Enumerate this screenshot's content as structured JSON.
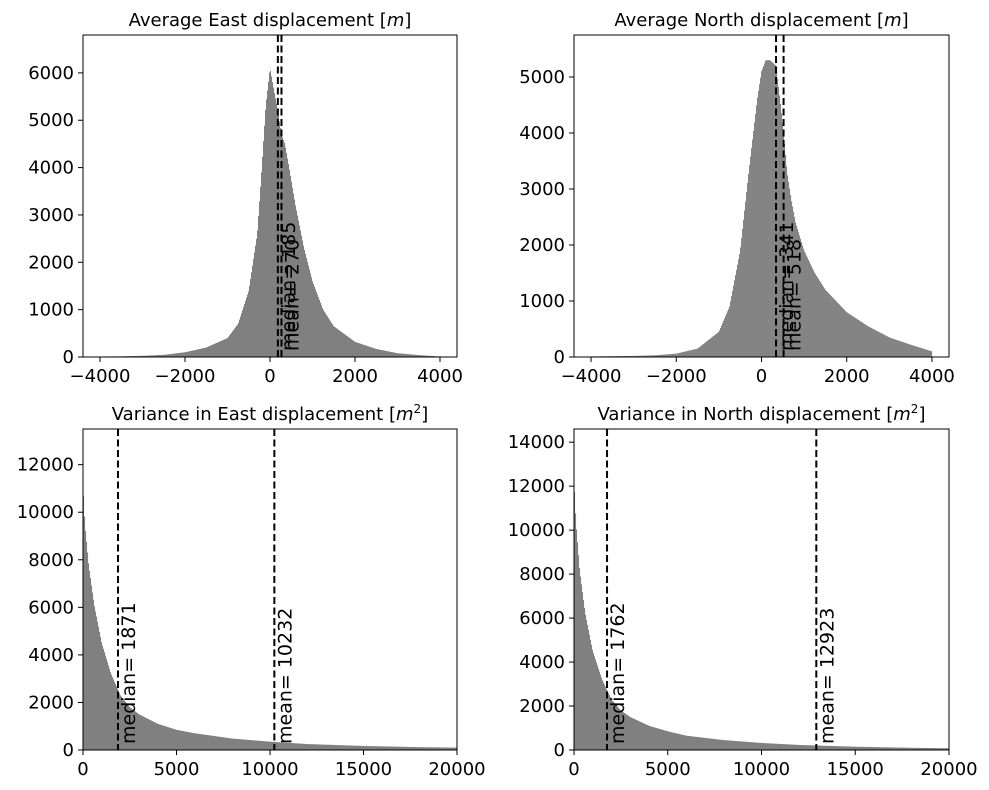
{
  "chart_data": [
    {
      "type": "histogram",
      "title": "Average East displacement [m]",
      "title_parts": [
        "Average East displacement [",
        "m",
        "]"
      ],
      "xlim": [
        -4400,
        4400
      ],
      "ylim": [
        0,
        6800
      ],
      "xticks": [
        -4000,
        -2000,
        0,
        2000,
        4000
      ],
      "xtick_labels": [
        "−4000",
        "−2000",
        "0",
        "2000",
        "4000"
      ],
      "yticks": [
        0,
        1000,
        2000,
        3000,
        4000,
        5000,
        6000
      ],
      "ytick_labels": [
        "0",
        "1000",
        "2000",
        "3000",
        "4000",
        "5000",
        "6000"
      ],
      "bar_color": "#808080",
      "bins": {
        "x": [
          -4000,
          -3500,
          -3000,
          -2500,
          -2000,
          -1500,
          -1000,
          -750,
          -500,
          -300,
          -200,
          -100,
          0,
          100,
          185,
          270,
          350,
          450,
          600,
          800,
          1000,
          1250,
          1500,
          2000,
          2500,
          3000,
          3500,
          4000
        ],
        "y": [
          10,
          15,
          25,
          45,
          100,
          200,
          400,
          700,
          1400,
          2600,
          3900,
          5300,
          6100,
          5600,
          5200,
          4700,
          4500,
          4000,
          3200,
          2300,
          1600,
          1000,
          650,
          320,
          170,
          80,
          40,
          10
        ]
      },
      "markers": [
        {
          "x": 185,
          "label": "median= 185",
          "label_y": 2500
        },
        {
          "x": 270,
          "label": "mean= 270",
          "label_y": 2500
        }
      ]
    },
    {
      "type": "histogram",
      "title": "Average North displacement [m]",
      "title_parts": [
        "Average North displacement [",
        "m",
        "]"
      ],
      "xlim": [
        -4400,
        4400
      ],
      "ylim": [
        0,
        5750
      ],
      "xticks": [
        -4000,
        -2000,
        0,
        2000,
        4000
      ],
      "xtick_labels": [
        "−4000",
        "−2000",
        "0",
        "2000",
        "4000"
      ],
      "yticks": [
        0,
        1000,
        2000,
        3000,
        4000,
        5000
      ],
      "ytick_labels": [
        "0",
        "1000",
        "2000",
        "3000",
        "4000",
        "5000"
      ],
      "bar_color": "#808080",
      "bins": {
        "x": [
          -4000,
          -3500,
          -3000,
          -2500,
          -2000,
          -1500,
          -1000,
          -750,
          -500,
          -300,
          -100,
          0,
          100,
          200,
          341,
          450,
          518,
          600,
          700,
          800,
          1000,
          1250,
          1500,
          2000,
          2500,
          3000,
          3500,
          4000
        ],
        "y": [
          10,
          15,
          20,
          30,
          60,
          150,
          450,
          900,
          1900,
          3300,
          4600,
          5100,
          5300,
          5300,
          5200,
          4500,
          4000,
          3300,
          2800,
          2400,
          1900,
          1500,
          1200,
          800,
          550,
          350,
          220,
          100
        ]
      },
      "markers": [
        {
          "x": 341,
          "label": "median= 341",
          "label_y": 2000
        },
        {
          "x": 518,
          "label": "mean= 518",
          "label_y": 2000
        }
      ]
    },
    {
      "type": "histogram",
      "title": "Variance in East displacement [m²]",
      "title_parts": [
        "Variance in East displacement [",
        "m",
        "2",
        "]"
      ],
      "xlim": [
        0,
        20000
      ],
      "ylim": [
        0,
        13500
      ],
      "xticks": [
        0,
        5000,
        10000,
        15000,
        20000
      ],
      "xtick_labels": [
        "0",
        "5000",
        "10000",
        "15000",
        "20000"
      ],
      "yticks": [
        0,
        2000,
        4000,
        6000,
        8000,
        10000,
        12000
      ],
      "ytick_labels": [
        "0",
        "2000",
        "4000",
        "6000",
        "8000",
        "10000",
        "12000"
      ],
      "bar_color": "#808080",
      "bins": {
        "x": [
          0,
          100,
          300,
          600,
          1000,
          1500,
          2000,
          2500,
          3000,
          4000,
          5000,
          6000,
          8000,
          10000,
          12000,
          15000,
          18000,
          20000
        ],
        "y": [
          11100,
          9500,
          7800,
          6100,
          4500,
          3200,
          2300,
          1800,
          1500,
          1100,
          850,
          700,
          480,
          350,
          250,
          170,
          120,
          100
        ]
      },
      "markers": [
        {
          "x": 1871,
          "label": "median= 1871",
          "label_y": 11000
        },
        {
          "x": 10232,
          "label": "mean= 10232",
          "label_y": 11000
        }
      ]
    },
    {
      "type": "histogram",
      "title": "Variance in North displacement [m²]",
      "title_parts": [
        "Variance in North displacement [",
        "m",
        "2",
        "]"
      ],
      "xlim": [
        0,
        20000
      ],
      "ylim": [
        0,
        14600
      ],
      "xticks": [
        0,
        5000,
        10000,
        15000,
        20000
      ],
      "xtick_labels": [
        "0",
        "5000",
        "10000",
        "15000",
        "20000"
      ],
      "yticks": [
        0,
        2000,
        4000,
        6000,
        8000,
        10000,
        12000,
        14000
      ],
      "ytick_labels": [
        "0",
        "2000",
        "4000",
        "6000",
        "8000",
        "10000",
        "12000",
        "14000"
      ],
      "bar_color": "#808080",
      "bins": {
        "x": [
          0,
          100,
          300,
          600,
          1000,
          1500,
          2000,
          2500,
          3000,
          4000,
          5000,
          6000,
          8000,
          10000,
          12000,
          15000,
          18000,
          20000
        ],
        "y": [
          12200,
          10400,
          8200,
          6200,
          4500,
          3200,
          2300,
          1800,
          1500,
          1100,
          850,
          650,
          450,
          320,
          230,
          150,
          100,
          80
        ]
      },
      "markers": [
        {
          "x": 1762,
          "label": "median= 1762",
          "label_y": 11500
        },
        {
          "x": 12923,
          "label": "mean= 12923",
          "label_y": 11500
        }
      ]
    }
  ]
}
